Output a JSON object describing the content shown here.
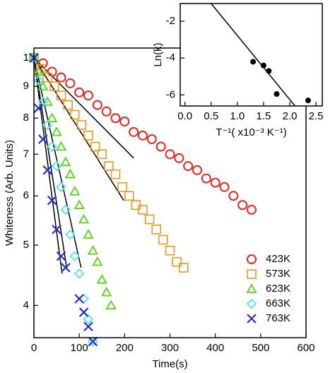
{
  "chart_data": [
    {
      "type": "scatter",
      "log_y": true,
      "x_label": "Time(s)",
      "y_label": "Whiteness (Arb. Units)",
      "xlim": [
        0,
        600
      ],
      "xticks": [
        0,
        100,
        200,
        300,
        400,
        500,
        600
      ],
      "ylim": [
        0.355,
        1.037
      ],
      "yticks": [
        1,
        {
          "value": 0.9,
          "label": "9"
        },
        {
          "value": 0.8,
          "label": "8"
        },
        {
          "value": 0.7,
          "label": "7"
        },
        {
          "value": 0.6,
          "label": "6"
        },
        {
          "value": 0.5,
          "label": "5"
        },
        {
          "value": 0.4,
          "label": "4"
        }
      ],
      "legend": "lower right",
      "series": [
        {
          "name": "423K",
          "color": "#e8251f",
          "marker": "circle",
          "x": [
            0,
            20,
            40,
            60,
            80,
            100,
            120,
            140,
            160,
            180,
            200,
            220,
            240,
            260,
            280,
            300,
            320,
            340,
            360,
            380,
            400,
            420,
            440,
            460,
            480
          ],
          "values": [
            1.0,
            0.98,
            0.95,
            0.93,
            0.91,
            0.88,
            0.87,
            0.84,
            0.82,
            0.8,
            0.79,
            0.76,
            0.75,
            0.74,
            0.72,
            0.7,
            0.69,
            0.67,
            0.66,
            0.64,
            0.63,
            0.62,
            0.6,
            0.58,
            0.57
          ]
        },
        {
          "name": "573K",
          "color": "#f0961e",
          "marker": "square",
          "x": [
            0,
            15,
            30,
            45,
            60,
            75,
            90,
            105,
            120,
            135,
            150,
            165,
            180,
            195,
            210,
            225,
            240,
            255,
            270,
            285,
            300,
            315,
            330
          ],
          "values": [
            1.0,
            0.96,
            0.93,
            0.9,
            0.87,
            0.84,
            0.81,
            0.78,
            0.75,
            0.72,
            0.7,
            0.67,
            0.65,
            0.62,
            0.6,
            0.58,
            0.57,
            0.55,
            0.53,
            0.51,
            0.49,
            0.47,
            0.46
          ]
        },
        {
          "name": "623K",
          "color": "#5ad214",
          "marker": "triangle",
          "x": [
            0,
            10,
            20,
            30,
            40,
            50,
            60,
            70,
            80,
            90,
            100,
            110,
            120,
            130,
            140,
            150,
            160,
            170
          ],
          "values": [
            1.0,
            0.95,
            0.9,
            0.85,
            0.8,
            0.76,
            0.72,
            0.68,
            0.65,
            0.61,
            0.58,
            0.55,
            0.52,
            0.49,
            0.47,
            0.44,
            0.42,
            0.4
          ]
        },
        {
          "name": "663K",
          "color": "#5fe6e6",
          "marker": "diamond",
          "x": [
            0,
            10,
            20,
            30,
            40,
            50,
            60,
            70,
            80,
            90,
            100,
            110,
            120,
            130
          ],
          "values": [
            1.0,
            0.92,
            0.85,
            0.78,
            0.72,
            0.67,
            0.62,
            0.57,
            0.52,
            0.48,
            0.45,
            0.41,
            0.38,
            0.35
          ]
        },
        {
          "name": "763K",
          "color": "#2332c8",
          "marker": "x",
          "x": [
            0,
            10,
            20,
            30,
            40,
            50,
            60,
            70,
            100,
            110,
            120,
            130
          ],
          "values": [
            1.0,
            0.83,
            0.74,
            0.66,
            0.59,
            0.53,
            0.48,
            0.46,
            0.41,
            0.39,
            0.37,
            0.35
          ]
        }
      ],
      "lines": [
        {
          "x": [
            0,
            220
          ],
          "values": [
            1,
            0.69
          ]
        },
        {
          "x": [
            0,
            198
          ],
          "values": [
            1,
            0.59
          ]
        },
        {
          "x": [
            0,
            104
          ],
          "values": [
            1,
            0.46
          ]
        },
        {
          "x": [
            0,
            73
          ],
          "values": [
            1,
            0.456
          ]
        },
        {
          "x": [
            0,
            62
          ],
          "values": [
            1,
            0.45
          ]
        }
      ]
    },
    {
      "type": "scatter",
      "x_label": "T⁻¹( x10⁻³ K⁻¹)",
      "y_label": "Ln(k)",
      "xlim": [
        -0.09,
        2.62
      ],
      "xticks": [
        {
          "value": 0,
          "label": "0.0"
        },
        {
          "value": 0.5,
          "label": "0.5"
        },
        {
          "value": 1,
          "label": "1.0"
        },
        {
          "value": 1.5,
          "label": "1.5"
        },
        {
          "value": 2,
          "label": "2.0"
        },
        {
          "value": 2.5,
          "label": "2.5"
        }
      ],
      "ylim": [
        -6.6,
        -1.04
      ],
      "yticks": [
        -2,
        -4,
        -6
      ],
      "series": [
        {
          "color": "#000000",
          "marker": "dot",
          "x": [
            1.3,
            1.5,
            1.6,
            1.75,
            2.35
          ],
          "values": [
            -4.2,
            -4.4,
            -4.7,
            -5.95,
            -6.3
          ]
        }
      ],
      "lines": [
        {
          "x": [
            0.5,
            2.1
          ],
          "values": [
            -1.04,
            -6.6
          ]
        }
      ]
    }
  ]
}
